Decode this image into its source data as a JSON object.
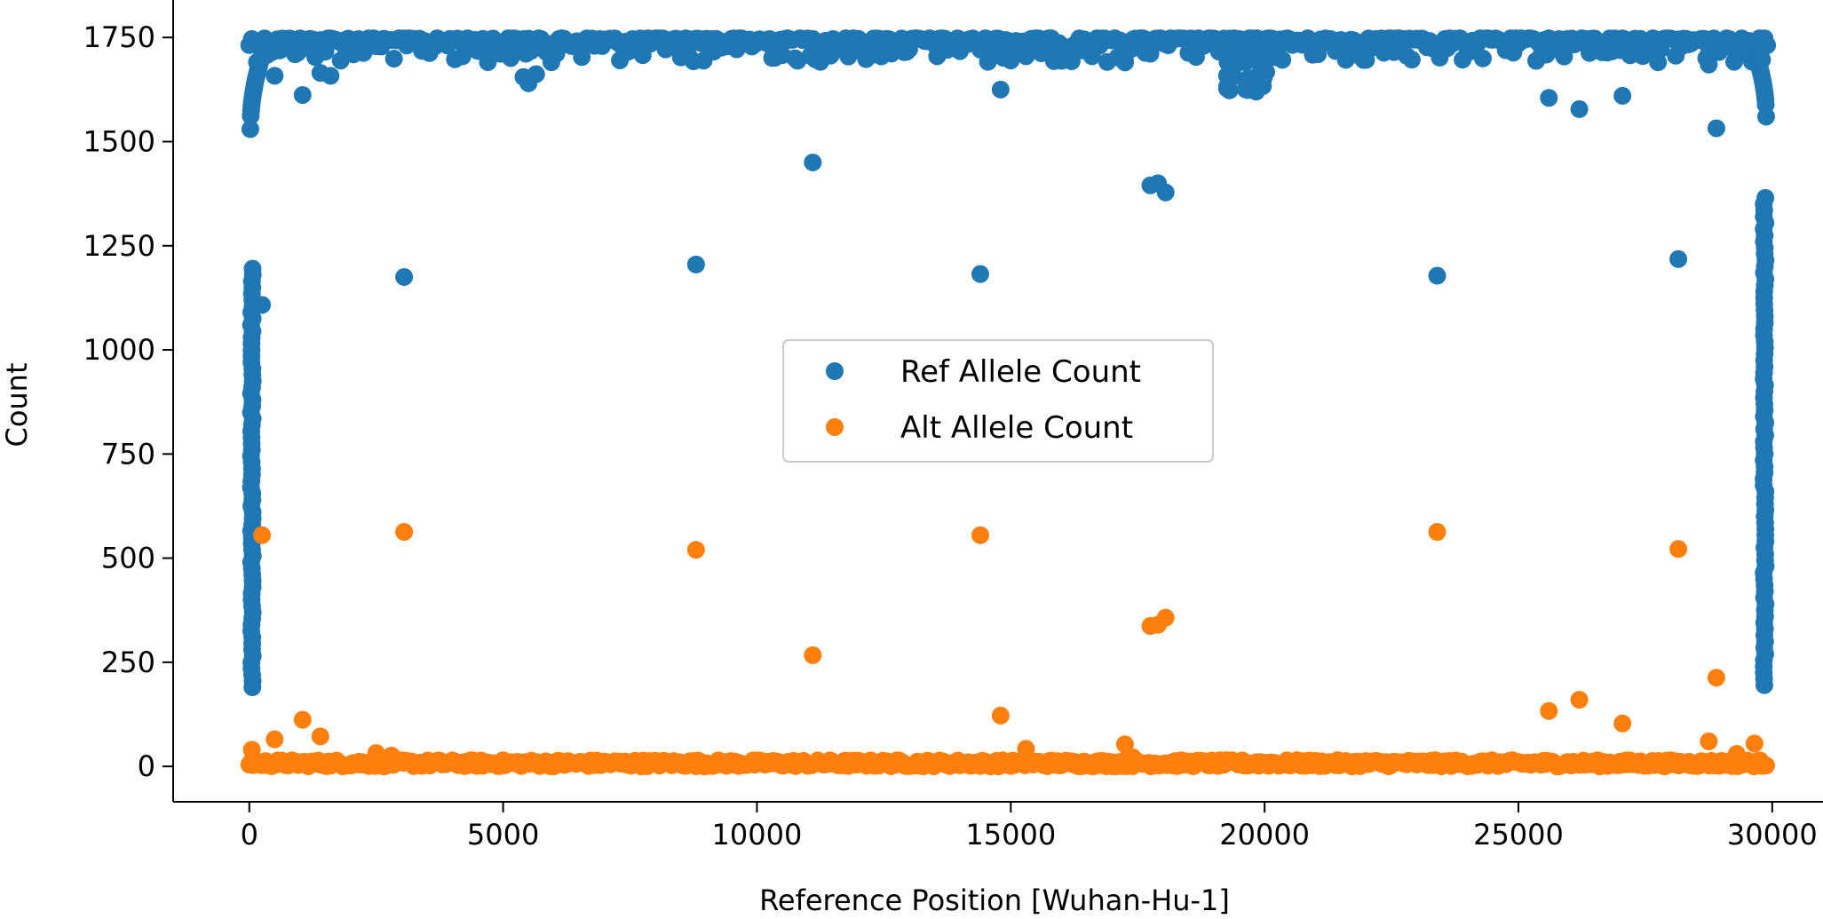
{
  "chart_data": {
    "type": "scatter",
    "xlabel": "Reference Position [Wuhan-Hu-1]",
    "ylabel": "Count",
    "xlim": [
      -1500,
      31000
    ],
    "ylim": [
      -85,
      1840
    ],
    "xticks": [
      0,
      5000,
      10000,
      15000,
      20000,
      25000,
      30000
    ],
    "yticks": [
      0,
      250,
      500,
      750,
      1000,
      1250,
      1500,
      1750
    ],
    "grid": false,
    "legend_position": "center",
    "series": [
      {
        "name": "Ref Allele Count",
        "color": "#1f77b4",
        "points": [
          [
            3050,
            1175
          ],
          [
            8800,
            1205
          ],
          [
            14400,
            1182
          ],
          [
            23400,
            1178
          ],
          [
            28150,
            1218
          ],
          [
            11100,
            1450
          ],
          [
            17750,
            1395
          ],
          [
            17900,
            1400
          ],
          [
            18050,
            1378
          ],
          [
            1050,
            1612
          ],
          [
            14800,
            1625
          ],
          [
            25600,
            1605
          ],
          [
            26200,
            1578
          ],
          [
            27050,
            1610
          ],
          [
            28900,
            1532
          ],
          [
            250,
            1108
          ],
          [
            500,
            1658
          ],
          [
            1400,
            1665
          ],
          [
            1600,
            1658
          ],
          [
            5400,
            1655
          ],
          [
            5500,
            1640
          ],
          [
            5650,
            1662
          ],
          [
            15300,
            1705
          ],
          [
            17250,
            1690
          ],
          [
            28750,
            1685
          ]
        ],
        "top_band": {
          "x": [
            0,
            29900
          ],
          "y": [
            1690,
            1748
          ]
        },
        "edge_columns": [
          {
            "x": 50,
            "y": [
              190,
              1200
            ]
          },
          {
            "x": 29850,
            "y": [
              195,
              1370
            ]
          }
        ]
      },
      {
        "name": "Alt Allele Count",
        "color": "#ff7f0e",
        "points": [
          [
            250,
            555
          ],
          [
            3050,
            563
          ],
          [
            8800,
            520
          ],
          [
            14400,
            555
          ],
          [
            23400,
            563
          ],
          [
            28150,
            522
          ],
          [
            11100,
            267
          ],
          [
            17750,
            337
          ],
          [
            17900,
            340
          ],
          [
            18050,
            357
          ],
          [
            14800,
            122
          ],
          [
            25600,
            133
          ],
          [
            26200,
            160
          ],
          [
            27050,
            103
          ],
          [
            28900,
            213
          ],
          [
            1050,
            112
          ],
          [
            1400,
            72
          ],
          [
            500,
            65
          ],
          [
            50,
            40
          ],
          [
            15300,
            42
          ],
          [
            17250,
            53
          ],
          [
            28750,
            60
          ],
          [
            29650,
            55
          ],
          [
            2500,
            32
          ],
          [
            2800,
            26
          ],
          [
            17400,
            22
          ],
          [
            29300,
            30
          ]
        ],
        "bottom_band": {
          "x": [
            0,
            29900
          ],
          "y": [
            0,
            15
          ]
        }
      }
    ]
  }
}
